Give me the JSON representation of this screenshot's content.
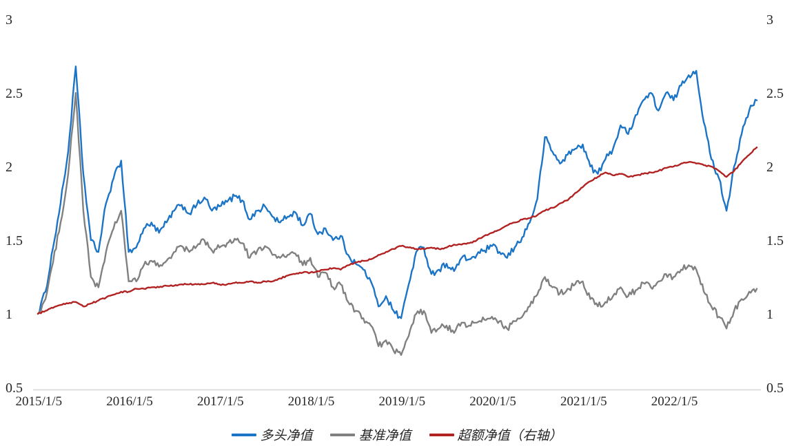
{
  "chart_data": {
    "type": "line",
    "title": "",
    "xlabel": "",
    "ylabel": "",
    "grid": false,
    "legend_position": "bottom-center",
    "x_start_year": 2015.0,
    "x_step_years": 0.0833333,
    "x_axis": {
      "ticks": [
        {
          "label": "2015/1/5",
          "t": 2015.01
        },
        {
          "label": "2016/1/5",
          "t": 2016.01
        },
        {
          "label": "2017/1/5",
          "t": 2017.01
        },
        {
          "label": "2018/1/5",
          "t": 2018.01
        },
        {
          "label": "2019/1/5",
          "t": 2019.01
        },
        {
          "label": "2020/1/5",
          "t": 2020.01
        },
        {
          "label": "2021/1/5",
          "t": 2021.01
        },
        {
          "label": "2022/1/5",
          "t": 2022.01
        }
      ]
    },
    "left_y_axis": {
      "range": [
        0.5,
        3
      ],
      "ticks": [
        "0.5",
        "1",
        "1.5",
        "2",
        "2.5",
        "3"
      ]
    },
    "right_y_axis": {
      "range": [
        0.5,
        3
      ],
      "ticks": [
        "0.5",
        "1",
        "1.5",
        "2",
        "2.5",
        "3"
      ]
    },
    "series": [
      {
        "name": "多头净值",
        "axis": "left",
        "color": "#1B74C5",
        "jitter": 0.022,
        "values": [
          1.0,
          1.15,
          1.45,
          1.75,
          2.1,
          2.68,
          1.95,
          1.5,
          1.42,
          1.75,
          1.92,
          2.04,
          1.42,
          1.45,
          1.58,
          1.62,
          1.55,
          1.62,
          1.7,
          1.74,
          1.68,
          1.74,
          1.79,
          1.7,
          1.73,
          1.76,
          1.8,
          1.77,
          1.64,
          1.7,
          1.73,
          1.66,
          1.62,
          1.66,
          1.69,
          1.6,
          1.68,
          1.54,
          1.58,
          1.5,
          1.53,
          1.4,
          1.34,
          1.3,
          1.22,
          1.05,
          1.12,
          1.02,
          0.97,
          1.2,
          1.42,
          1.45,
          1.27,
          1.3,
          1.34,
          1.29,
          1.38,
          1.37,
          1.4,
          1.43,
          1.46,
          1.42,
          1.38,
          1.45,
          1.52,
          1.62,
          1.78,
          2.2,
          2.1,
          2.02,
          2.08,
          2.12,
          2.15,
          2.0,
          1.95,
          2.05,
          2.12,
          2.28,
          2.22,
          2.35,
          2.45,
          2.5,
          2.38,
          2.5,
          2.45,
          2.55,
          2.62,
          2.65,
          2.3,
          2.05,
          1.92,
          1.7,
          2.0,
          2.22,
          2.38,
          2.45
        ]
      },
      {
        "name": "基准净值",
        "axis": "left",
        "color": "#808080",
        "jitter": 0.022,
        "values": [
          1.0,
          1.1,
          1.35,
          1.62,
          1.95,
          2.5,
          1.7,
          1.25,
          1.18,
          1.42,
          1.58,
          1.7,
          1.22,
          1.22,
          1.33,
          1.36,
          1.32,
          1.36,
          1.42,
          1.46,
          1.42,
          1.46,
          1.5,
          1.43,
          1.45,
          1.48,
          1.51,
          1.48,
          1.38,
          1.43,
          1.46,
          1.4,
          1.38,
          1.4,
          1.41,
          1.33,
          1.38,
          1.25,
          1.28,
          1.18,
          1.2,
          1.08,
          1.02,
          0.97,
          0.92,
          0.78,
          0.82,
          0.75,
          0.72,
          0.85,
          1.0,
          1.02,
          0.87,
          0.9,
          0.92,
          0.87,
          0.94,
          0.92,
          0.94,
          0.96,
          0.98,
          0.95,
          0.9,
          0.95,
          0.98,
          1.05,
          1.13,
          1.25,
          1.18,
          1.14,
          1.17,
          1.2,
          1.22,
          1.1,
          1.05,
          1.08,
          1.12,
          1.18,
          1.12,
          1.16,
          1.21,
          1.18,
          1.22,
          1.27,
          1.25,
          1.3,
          1.33,
          1.3,
          1.15,
          1.05,
          0.98,
          0.9,
          1.02,
          1.1,
          1.15,
          1.17
        ]
      },
      {
        "name": "超额净值（右轴）",
        "axis": "right",
        "color": "#B22222",
        "jitter": 0.005,
        "values": [
          1.0,
          1.02,
          1.04,
          1.06,
          1.07,
          1.08,
          1.05,
          1.07,
          1.09,
          1.11,
          1.13,
          1.15,
          1.15,
          1.17,
          1.17,
          1.18,
          1.18,
          1.19,
          1.19,
          1.2,
          1.2,
          1.2,
          1.2,
          1.21,
          1.2,
          1.2,
          1.21,
          1.21,
          1.22,
          1.21,
          1.22,
          1.22,
          1.24,
          1.26,
          1.27,
          1.28,
          1.28,
          1.29,
          1.3,
          1.31,
          1.3,
          1.33,
          1.35,
          1.36,
          1.37,
          1.4,
          1.42,
          1.44,
          1.46,
          1.45,
          1.44,
          1.44,
          1.45,
          1.44,
          1.45,
          1.47,
          1.47,
          1.48,
          1.5,
          1.53,
          1.55,
          1.57,
          1.6,
          1.62,
          1.64,
          1.65,
          1.67,
          1.7,
          1.72,
          1.75,
          1.77,
          1.82,
          1.86,
          1.9,
          1.93,
          1.96,
          1.94,
          1.95,
          1.93,
          1.94,
          1.95,
          1.96,
          1.97,
          1.99,
          2.0,
          2.02,
          2.03,
          2.02,
          2.01,
          2.0,
          1.97,
          1.93,
          1.97,
          2.03,
          2.08,
          2.13
        ]
      }
    ]
  },
  "legend": {
    "items": [
      {
        "label": "多头净值"
      },
      {
        "label": "基准净值"
      },
      {
        "label": "超额净值（右轴）"
      }
    ]
  },
  "style": {
    "axis_line_color": "#d6d6d6",
    "text_color": "#262626"
  }
}
